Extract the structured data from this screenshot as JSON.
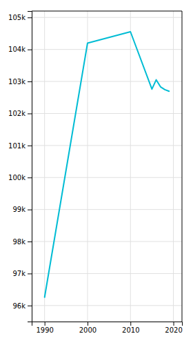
{
  "chart_data": {
    "type": "line",
    "x": [
      1990,
      2000,
      2010,
      2015,
      2016,
      2017,
      2018,
      2019
    ],
    "values": [
      96259,
      104197,
      104553,
      102760,
      103052,
      102833,
      102745,
      102694
    ],
    "color": "#00bcd4",
    "xlim": [
      1987,
      2022
    ],
    "xticks": [
      1990,
      2000,
      2010,
      2020
    ],
    "ylim": [
      95500,
      105200
    ],
    "yticks": [
      {
        "value": 96000,
        "label": "96k"
      },
      {
        "value": 97000,
        "label": "97k"
      },
      {
        "value": 98000,
        "label": "98k"
      },
      {
        "value": 99000,
        "label": "99k"
      },
      {
        "value": 100000,
        "label": "100k"
      },
      {
        "value": 101000,
        "label": "101k"
      },
      {
        "value": 102000,
        "label": "102k"
      },
      {
        "value": 103000,
        "label": "103k"
      },
      {
        "value": 104000,
        "label": "104k"
      },
      {
        "value": 105000,
        "label": "105k"
      }
    ],
    "grid": true
  }
}
